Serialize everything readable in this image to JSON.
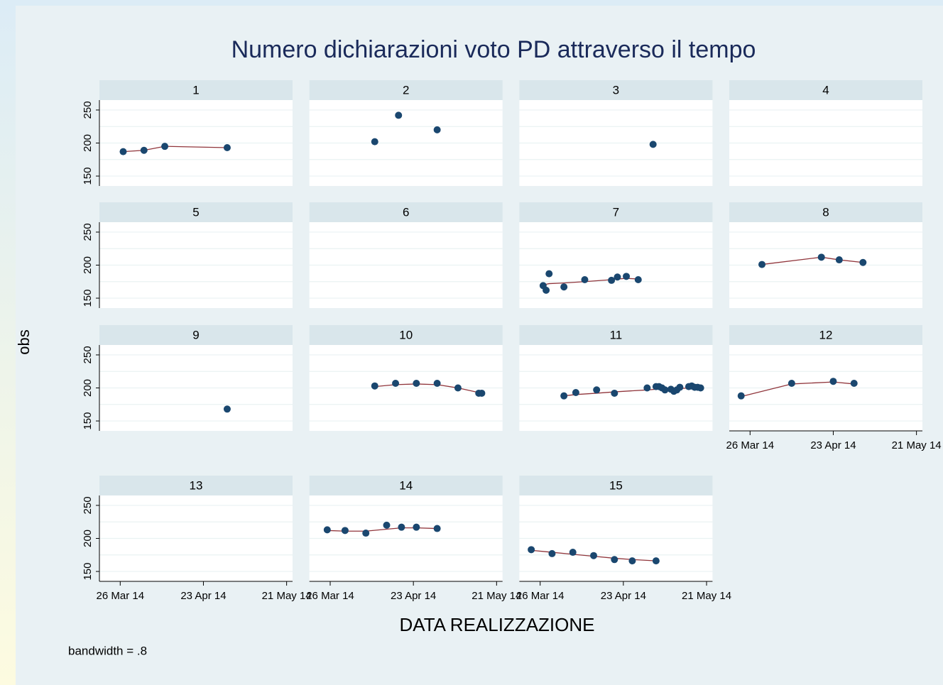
{
  "chart_data": {
    "type": "scatter",
    "title": "Numero dichiarazioni voto PD attraverso il tempo",
    "y_label": "obs",
    "x_label": "DATA REALIZZAZIONE",
    "note": "bandwidth = .8",
    "point_color": "#1a476f",
    "line_color": "#90353b",
    "xlim": [
      "2014-03-19",
      "2014-05-23"
    ],
    "xticks": [
      {
        "value": "2014-03-26",
        "label": "26 Mar 14"
      },
      {
        "value": "2014-04-23",
        "label": "23 Apr 14"
      },
      {
        "value": "2014-05-21",
        "label": "21 May 14"
      }
    ],
    "ylim": [
      135,
      265
    ],
    "yticks": [
      150,
      200,
      250
    ],
    "ygrid": [
      150,
      175,
      200,
      225,
      250
    ],
    "panels": [
      {
        "label": "1",
        "x": [
          "2014-03-27",
          "2014-04-03",
          "2014-04-10",
          "2014-05-01"
        ],
        "values": [
          187,
          189,
          195,
          193
        ],
        "fit": [
          187,
          189,
          195,
          193
        ]
      },
      {
        "label": "2",
        "x": [
          "2014-04-10",
          "2014-04-18",
          "2014-05-01"
        ],
        "values": [
          202,
          242,
          220
        ]
      },
      {
        "label": "3",
        "x": [
          "2014-05-03"
        ],
        "values": [
          198
        ]
      },
      {
        "label": "4",
        "x": [],
        "values": []
      },
      {
        "label": "5",
        "x": [],
        "values": []
      },
      {
        "label": "6",
        "x": [],
        "values": []
      },
      {
        "label": "7",
        "x": [
          "2014-03-27",
          "2014-03-28",
          "2014-03-29",
          "2014-04-03",
          "2014-04-10",
          "2014-04-19",
          "2014-04-21",
          "2014-04-24",
          "2014-04-28"
        ],
        "values": [
          169,
          162,
          187,
          167,
          178,
          177,
          182,
          183,
          178
        ],
        "fit": [
          170,
          171,
          172,
          173,
          175,
          178,
          179,
          180,
          179
        ]
      },
      {
        "label": "8",
        "x": [
          "2014-03-30",
          "2014-04-19",
          "2014-04-25",
          "2014-05-03"
        ],
        "values": [
          201,
          212,
          208,
          204
        ],
        "fit": [
          201,
          212,
          208,
          204
        ]
      },
      {
        "label": "9",
        "x": [
          "2014-05-01"
        ],
        "values": [
          168
        ]
      },
      {
        "label": "10",
        "x": [
          "2014-04-10",
          "2014-04-17",
          "2014-04-24",
          "2014-05-01",
          "2014-05-08",
          "2014-05-15",
          "2014-05-16"
        ],
        "values": [
          203,
          207,
          207,
          207,
          200,
          192,
          192
        ],
        "fit": [
          202,
          205,
          206,
          205,
          200,
          193,
          192
        ]
      },
      {
        "label": "11",
        "x": [
          "2014-04-03",
          "2014-04-07",
          "2014-04-14",
          "2014-04-20",
          "2014-05-01",
          "2014-05-04",
          "2014-05-05",
          "2014-05-06",
          "2014-05-07",
          "2014-05-09",
          "2014-05-10",
          "2014-05-11",
          "2014-05-12",
          "2014-05-15",
          "2014-05-16",
          "2014-05-17",
          "2014-05-18",
          "2014-05-19"
        ],
        "values": [
          188,
          193,
          197,
          192,
          200,
          202,
          202,
          200,
          197,
          198,
          195,
          197,
          201,
          202,
          203,
          201,
          201,
          200
        ],
        "fit": [
          188,
          190,
          192,
          194,
          197,
          198,
          198,
          198,
          198,
          198,
          198,
          199,
          199,
          200,
          200,
          200,
          200,
          200
        ]
      },
      {
        "label": "12",
        "x": [
          "2014-03-23",
          "2014-04-09",
          "2014-04-23",
          "2014-04-30"
        ],
        "values": [
          188,
          207,
          210,
          207
        ],
        "fit": [
          187,
          206,
          209,
          206
        ]
      },
      {
        "label": "13",
        "x": [],
        "values": []
      },
      {
        "label": "14",
        "x": [
          "2014-03-25",
          "2014-03-31",
          "2014-04-07",
          "2014-04-14",
          "2014-04-19",
          "2014-04-24",
          "2014-05-01"
        ],
        "values": [
          213,
          212,
          208,
          220,
          217,
          217,
          215
        ],
        "fit": [
          212,
          211,
          211,
          214,
          216,
          216,
          215
        ]
      },
      {
        "label": "15",
        "x": [
          "2014-03-23",
          "2014-03-30",
          "2014-04-06",
          "2014-04-13",
          "2014-04-20",
          "2014-04-26",
          "2014-05-04"
        ],
        "values": [
          183,
          177,
          179,
          174,
          168,
          166,
          166
        ],
        "fit": [
          182,
          179,
          176,
          173,
          170,
          168,
          166
        ]
      }
    ]
  }
}
